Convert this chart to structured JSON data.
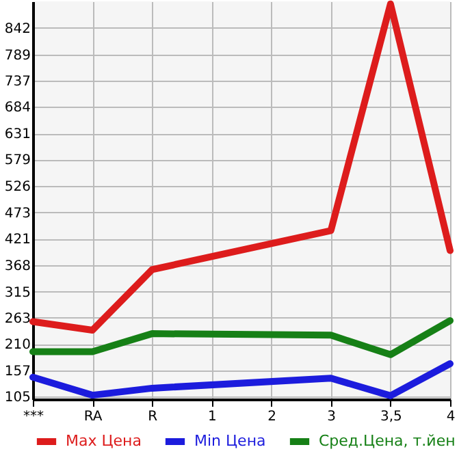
{
  "chart_data": {
    "type": "line",
    "categories": [
      "***",
      "RA",
      "R",
      "1",
      "2",
      "3",
      "3,5",
      "4"
    ],
    "series": [
      {
        "name": "Max Цена",
        "color": "#dd1c1c",
        "values": [
          255,
          238,
          359,
          null,
          null,
          437,
          890,
          397
        ]
      },
      {
        "name": "Min Цена",
        "color": "#1c1cdd",
        "values": [
          144,
          108,
          122,
          null,
          null,
          142,
          107,
          171
        ]
      },
      {
        "name": "Сред.Цена, т.йен",
        "color": "#168016",
        "values": [
          195,
          195,
          231,
          null,
          null,
          228,
          189,
          257
        ]
      }
    ],
    "ylim": [
      100,
      895
    ],
    "yticks": [
      105,
      157,
      210,
      263,
      315,
      368,
      421,
      473,
      526,
      579,
      631,
      684,
      737,
      789,
      842
    ],
    "grid": true,
    "legend": "bottom",
    "marker": "none",
    "line_style": "solid"
  }
}
